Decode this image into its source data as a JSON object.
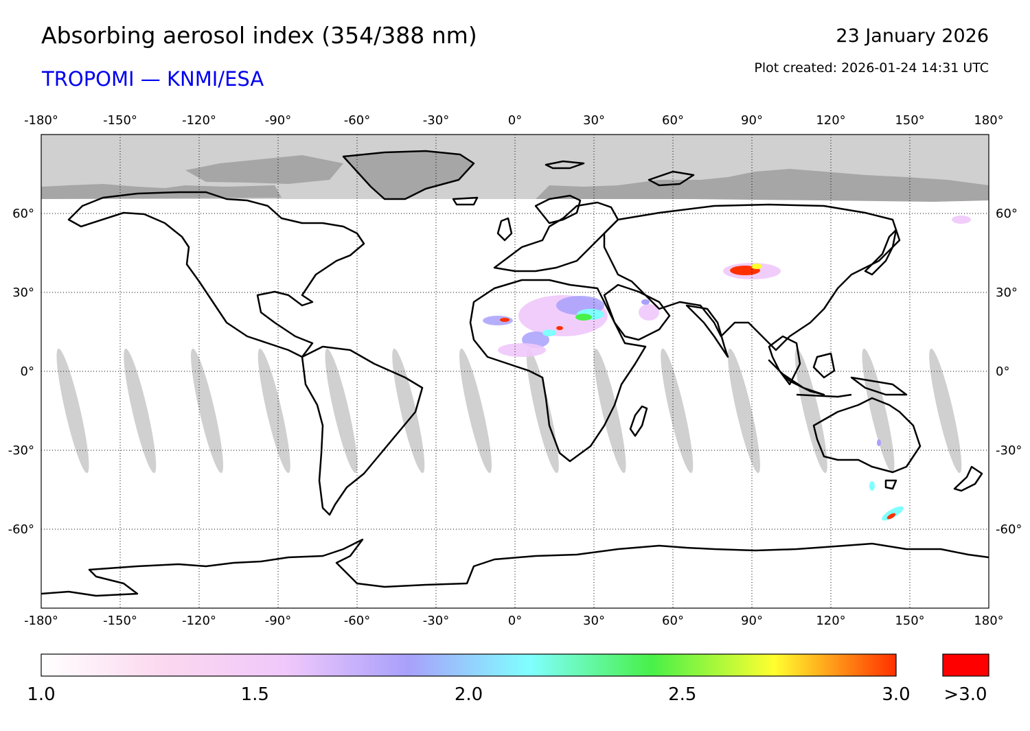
{
  "title": "Absorbing aerosol index (354/388 nm)",
  "subtitle": "TROPOMI — KNMI/ESA",
  "date": "23 January 2026",
  "plot_created": "Plot created: 2026-01-24 14:31 UTC",
  "map": {
    "lon_range": [
      -180,
      180
    ],
    "lat_range": [
      -90,
      90
    ],
    "lon_ticks": [
      {
        "value": -180,
        "label": "-180°"
      },
      {
        "value": -150,
        "label": "-150°"
      },
      {
        "value": -120,
        "label": "-120°"
      },
      {
        "value": -90,
        "label": "-90°"
      },
      {
        "value": -60,
        "label": "-60°"
      },
      {
        "value": -30,
        "label": "-30°"
      },
      {
        "value": 0,
        "label": "0°"
      },
      {
        "value": 30,
        "label": "30°"
      },
      {
        "value": 60,
        "label": "60°"
      },
      {
        "value": 90,
        "label": "90°"
      },
      {
        "value": 120,
        "label": "120°"
      },
      {
        "value": 150,
        "label": "150°"
      },
      {
        "value": 180,
        "label": "180°"
      }
    ],
    "lat_ticks": [
      {
        "value": 60,
        "label": "60°"
      },
      {
        "value": 30,
        "label": "30°"
      },
      {
        "value": 0,
        "label": "0°"
      },
      {
        "value": -30,
        "label": "-30°"
      },
      {
        "value": -60,
        "label": "-60°"
      }
    ],
    "gridlines": true,
    "no_data_color": "#d0d0d0",
    "land_polar_color": "#a6a6a6"
  },
  "colorbar": {
    "min": 1.0,
    "max": 3.0,
    "tick_labels": [
      "1.0",
      "1.5",
      "2.0",
      "2.5",
      "3.0"
    ],
    "overflow_label": ">3.0",
    "overflow_color": "#ff0000",
    "stops": [
      "#ffffff",
      "#fbd8ef",
      "#f0c8fb",
      "#a8a0fb",
      "#80ffff",
      "#48f048",
      "#ffff30",
      "#ff3000"
    ]
  }
}
